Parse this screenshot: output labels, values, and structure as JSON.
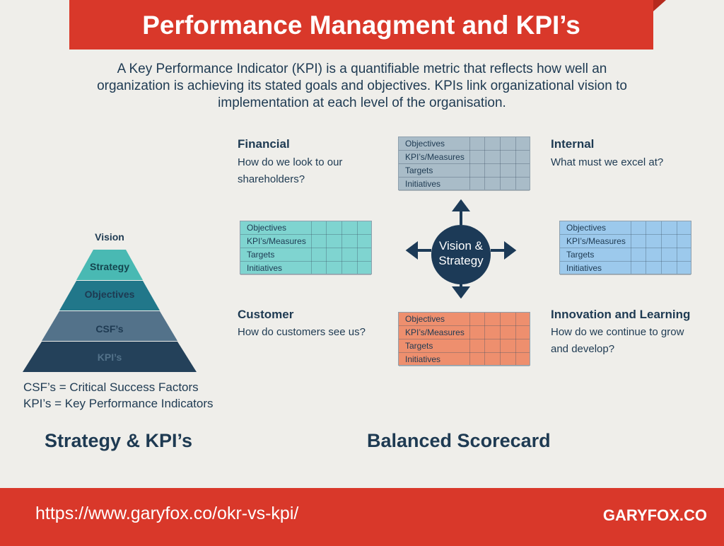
{
  "header": {
    "title": "Performance Managment and KPI’s",
    "intro_line1": "A Key Performance Indicator (KPI) is a quantifiable metric that reflects how well an",
    "intro_line2": "organization is achieving its stated goals and objectives. KPIs link organizational vision to",
    "intro_line3": "implementation at each level of the organisation."
  },
  "pyramid": {
    "levels": [
      "Vision",
      "Strategy",
      "Objectives",
      "CSF’s",
      "KPI’s"
    ],
    "legend": [
      "CSF’s = Critical Success Factors",
      "KPI’s = Key Performance Indicators"
    ],
    "section_title": "Strategy & KPI’s"
  },
  "scorecard": {
    "section_title": "Balanced Scorecard",
    "center_line1": "Vision &",
    "center_line2": "Strategy",
    "row_labels": [
      "Objectives",
      "KPI’s/Measures",
      "Targets",
      "Initiatives"
    ],
    "perspectives": {
      "financial": {
        "title": "Financial",
        "q1": "How do we look to our",
        "q2": "shareholders?",
        "color": "#7fd4d0"
      },
      "internal": {
        "title": "Internal",
        "q1": "What must we excel at?",
        "color": "#9cc9ec"
      },
      "customer": {
        "title": "Customer",
        "q1": "How do customers see us?",
        "color": "#a9bcc8"
      },
      "innovation": {
        "title": "Innovation and Learning",
        "q1": "How do we continue to grow",
        "q2": "and develop?",
        "color": "#ee8f6e"
      }
    }
  },
  "footer": {
    "url": "https://www.garyfox.co/okr-vs-kpi/",
    "brand": "GARYFOX.CO"
  },
  "colors": {
    "brand_red": "#d9382a",
    "navy": "#1c3a57",
    "background": "#efeeea"
  }
}
